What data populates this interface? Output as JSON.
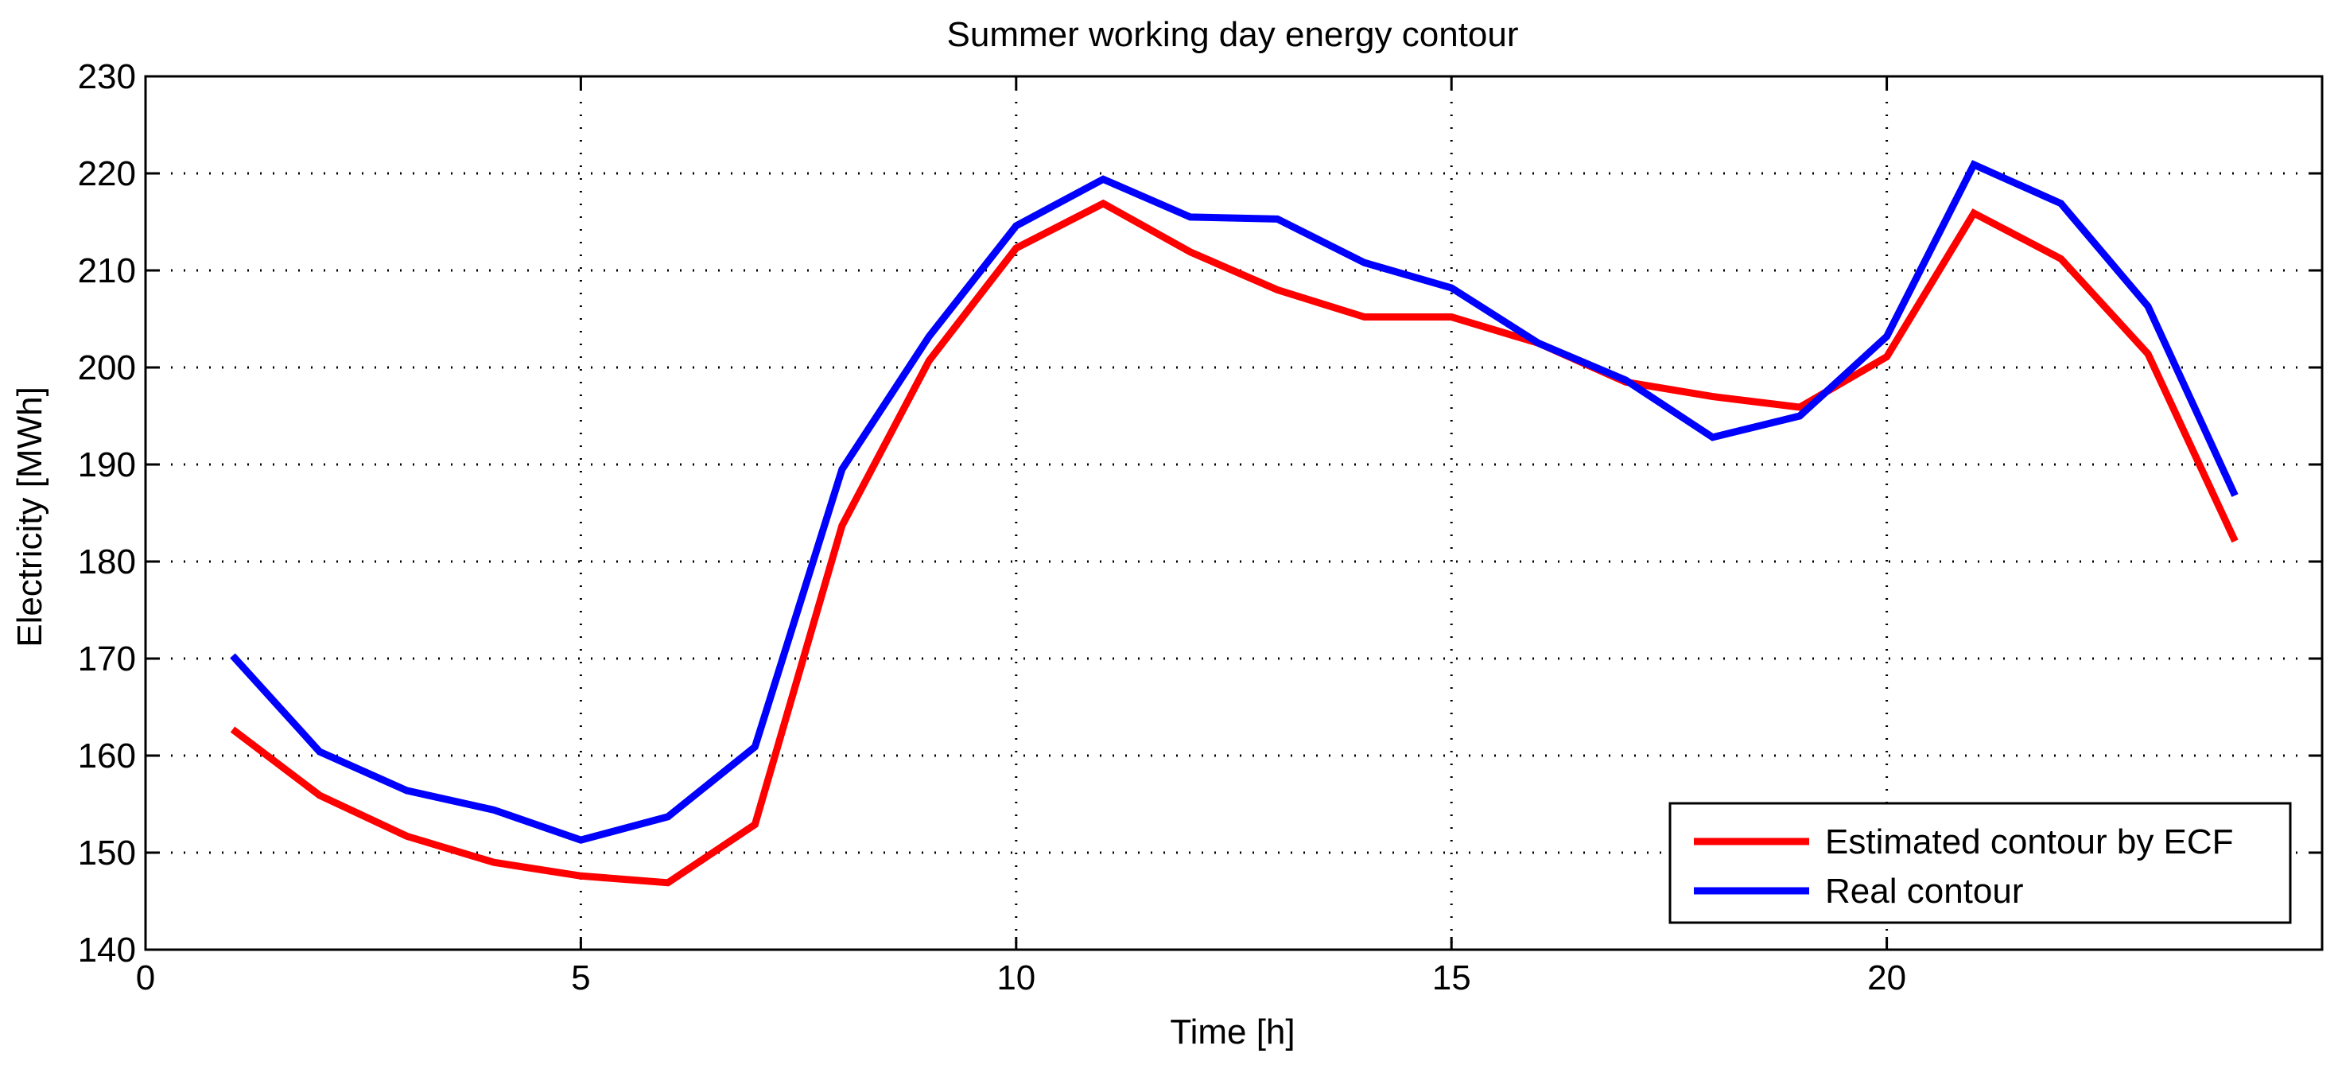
{
  "chart_data": {
    "type": "line",
    "title": "Summer working day energy contour",
    "xlabel": "Time [h]",
    "ylabel": "Electricity [MWh]",
    "xlim": [
      0,
      25
    ],
    "ylim": [
      140,
      230
    ],
    "xticks": [
      0,
      5,
      10,
      15,
      20
    ],
    "yticks": [
      140,
      150,
      160,
      170,
      180,
      190,
      200,
      210,
      220,
      230
    ],
    "grid": true,
    "legend_position": "bottom-right",
    "x": [
      1,
      2,
      3,
      4,
      5,
      6,
      7,
      8,
      9,
      10,
      11,
      12,
      13,
      14,
      15,
      16,
      17,
      18,
      19,
      20,
      21,
      22,
      23,
      24
    ],
    "series": [
      {
        "name": "Estimated contour by ECF",
        "color": "#ff0000",
        "values": [
          162.7,
          155.9,
          151.7,
          149.0,
          147.6,
          146.9,
          152.9,
          183.7,
          200.7,
          212.3,
          216.9,
          211.9,
          208.0,
          205.2,
          205.2,
          202.5,
          198.5,
          197.0,
          195.9,
          201.1,
          215.9,
          211.2,
          201.4,
          182.1
        ]
      },
      {
        "name": "Real contour",
        "color": "#0000ff",
        "values": [
          170.3,
          160.4,
          156.4,
          154.4,
          151.3,
          153.7,
          160.9,
          189.5,
          203.2,
          214.6,
          219.4,
          215.5,
          215.3,
          210.8,
          208.2,
          202.5,
          198.7,
          192.8,
          195.0,
          203.2,
          220.9,
          216.9,
          206.3,
          186.8
        ]
      }
    ]
  }
}
